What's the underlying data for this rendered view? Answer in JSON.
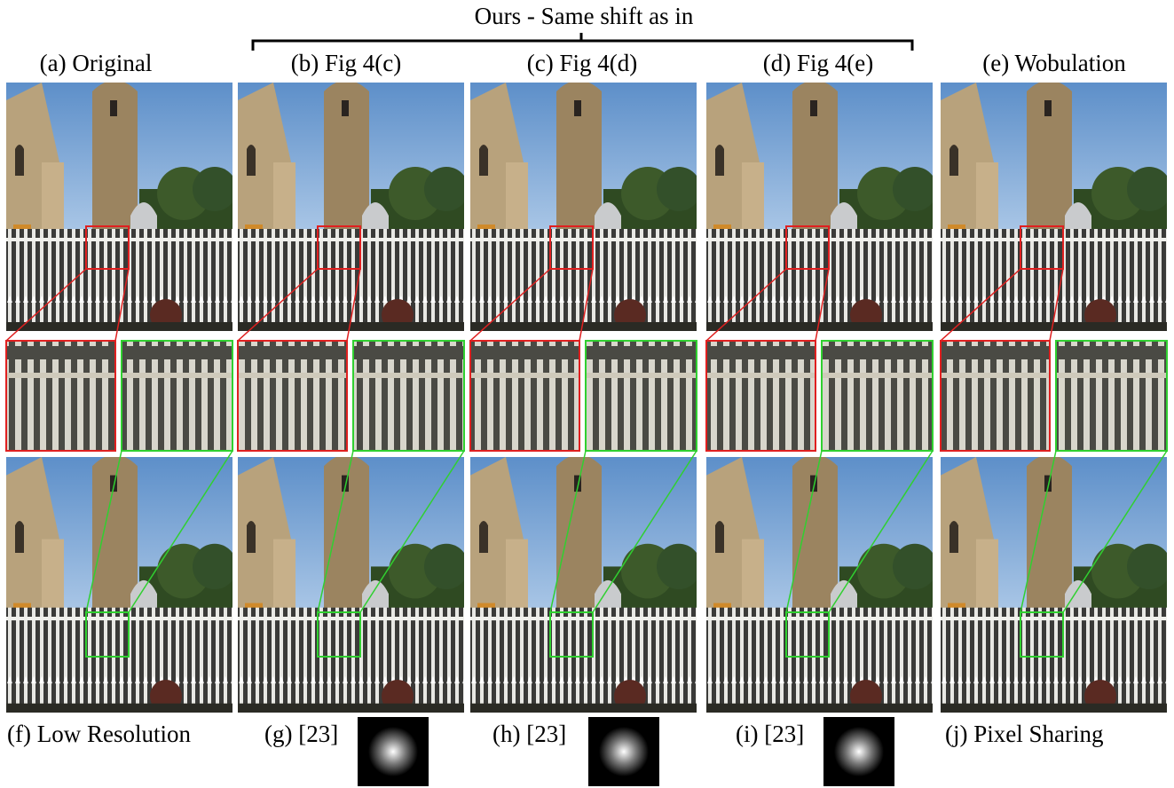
{
  "header": {
    "title": "Ours - Same shift as in"
  },
  "top_labels": [
    "(a) Original",
    "(b) Fig 4(c)",
    "(c) Fig 4(d)",
    "(d) Fig 4(e)",
    "(e) Wobulation"
  ],
  "bottom_labels": [
    "(f) Low Resolution",
    "(g) [23]",
    "(h) [23]",
    "(i) [23]",
    "(j) Pixel Sharing"
  ]
}
